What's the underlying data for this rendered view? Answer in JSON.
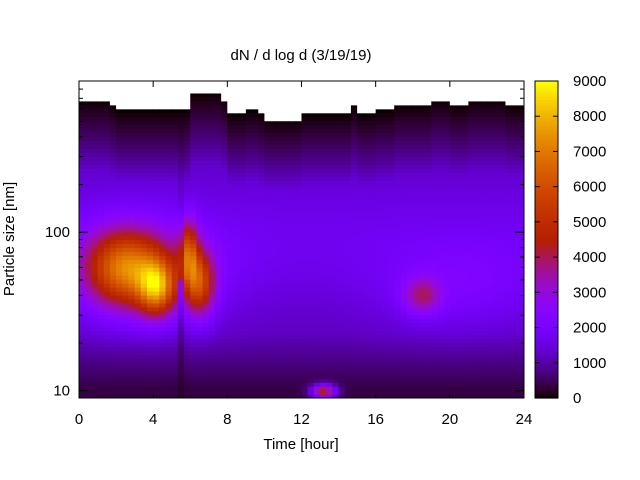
{
  "chart_data": {
    "type": "heatmap",
    "title": "dN / d log d (3/19/19)",
    "xlabel": "Time [hour]",
    "ylabel": "Particle size [nm]",
    "xlim": [
      0,
      24
    ],
    "ylim": [
      9,
      900
    ],
    "y_scale": "log",
    "x_ticks": [
      0,
      4,
      8,
      12,
      16,
      20,
      24
    ],
    "x_tick_labels": [
      "0",
      "4",
      "8",
      "12",
      "16",
      "20",
      "24"
    ],
    "y_ticks": [
      10,
      100
    ],
    "y_tick_labels": [
      "10",
      "100"
    ],
    "colorbar": {
      "min": 0,
      "max": 9000,
      "ticks": [
        0,
        1000,
        2000,
        3000,
        4000,
        5000,
        6000,
        7000,
        8000,
        9000
      ],
      "tick_labels": [
        "0",
        "1000",
        "2000",
        "3000",
        "4000",
        "5000",
        "6000",
        "7000",
        "8000",
        "9000"
      ],
      "colormap": "gnuplot-pm3d-black-purple-red-yellow"
    },
    "grid": false,
    "features": [
      {
        "time_hour": 2.5,
        "size_nm": 60,
        "value": 6000
      },
      {
        "time_hour": 4.2,
        "size_nm": 45,
        "value": 7500
      },
      {
        "time_hour": 5.9,
        "size_nm": 75,
        "value": 6500
      },
      {
        "time_hour": 6.5,
        "size_nm": 48,
        "value": 6500
      },
      {
        "time_hour": 13.2,
        "size_nm": 10,
        "value": 5500
      },
      {
        "time_hour": 18.5,
        "size_nm": 40,
        "value": 4000
      }
    ],
    "upper_limit_nm": [
      [
        0,
        690
      ],
      [
        1.5,
        640
      ],
      [
        2,
        590
      ],
      [
        5.5,
        590
      ],
      [
        5.9,
        760
      ],
      [
        6.2,
        760
      ],
      [
        7.5,
        690
      ],
      [
        8,
        560
      ],
      [
        9,
        590
      ],
      [
        9.5,
        560
      ],
      [
        10,
        520
      ],
      [
        11.5,
        520
      ],
      [
        12,
        560
      ],
      [
        14,
        560
      ],
      [
        14.5,
        620
      ],
      [
        15,
        560
      ],
      [
        16,
        590
      ],
      [
        17,
        640
      ],
      [
        18,
        640
      ],
      [
        19,
        690
      ],
      [
        20,
        640
      ],
      [
        21,
        690
      ],
      [
        23,
        640
      ],
      [
        24,
        690
      ]
    ]
  }
}
